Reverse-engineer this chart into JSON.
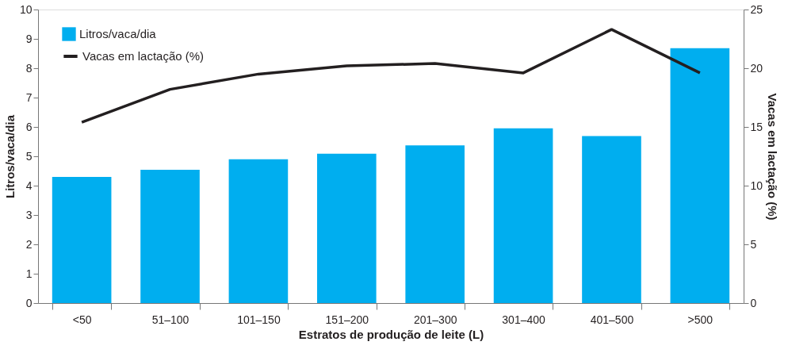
{
  "chart_data": {
    "type": "bar",
    "xlabel": "Estratos de produção de leite (L)",
    "ylabel": "Litros/vaca/dia",
    "y2label": "Vacas em lactação (%)",
    "categories": [
      "<50",
      "51–100",
      "101–150",
      "151–200",
      "201–300",
      "301–400",
      "401–500",
      ">500"
    ],
    "series": [
      {
        "name": "Litros/vaca/dia",
        "color": "#00aeef",
        "values": [
          4.3,
          4.54,
          4.9,
          5.09,
          5.37,
          5.95,
          5.69,
          8.68
        ]
      },
      {
        "name": "Vacas em lactação (%)",
        "type": "line",
        "axis": "y2",
        "color": "#231f20",
        "values": [
          15.4,
          18.2,
          19.5,
          20.2,
          20.4,
          19.6,
          23.3,
          19.6
        ]
      }
    ],
    "ylim": [
      0,
      10
    ],
    "yticks": [
      0,
      1,
      2,
      3,
      4,
      5,
      6,
      7,
      8,
      9,
      10
    ],
    "y2lim": [
      0,
      25
    ],
    "y2ticks": [
      0,
      5,
      10,
      15,
      20,
      25
    ],
    "legend": "top left",
    "grid": false,
    "marker": "none",
    "line_style": "solid"
  }
}
